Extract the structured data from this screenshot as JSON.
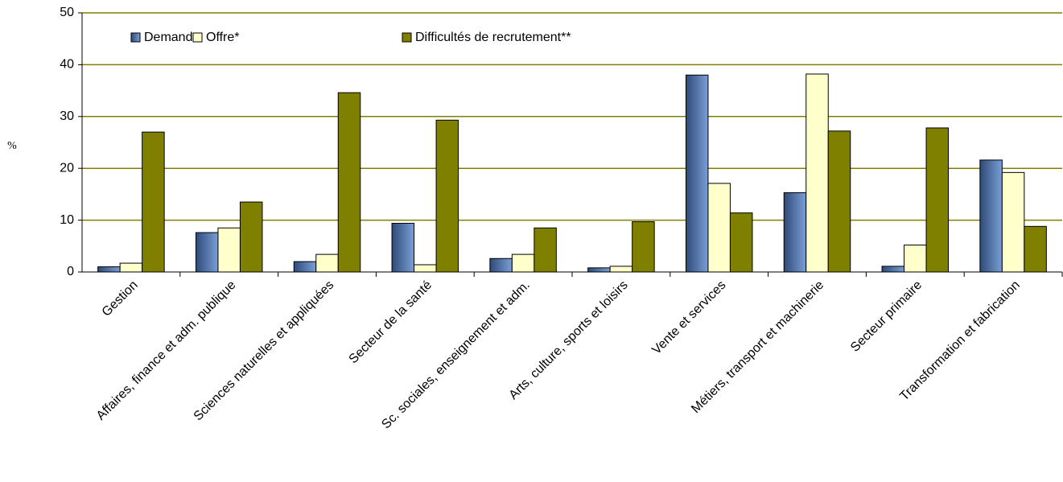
{
  "chart_data": {
    "type": "bar",
    "y_label": "%",
    "categories": [
      "Gestion",
      "Affaires, finance et adm. publique",
      "Sciences naturelles et appliquées",
      "Secteur de la santé",
      "Sc. sociales, enseignement et adm.",
      "Arts, culture, sports et loisirs",
      "Vente et services",
      "Métiers, transport et machinerie",
      "Secteur primaire",
      "Transformation et fabrication"
    ],
    "series": [
      {
        "name": "Demande",
        "color": "#7a9fd6",
        "values": [
          1.0,
          7.6,
          2.0,
          9.4,
          2.6,
          0.8,
          38.0,
          15.3,
          1.1,
          21.6
        ]
      },
      {
        "name": "Offre*",
        "color": "#ffffcc",
        "values": [
          1.7,
          8.5,
          3.4,
          1.4,
          3.4,
          1.1,
          17.1,
          38.2,
          5.2,
          19.2
        ]
      },
      {
        "name": "Difficultés de recrutement**",
        "color": "#808000",
        "values": [
          27.0,
          13.5,
          34.6,
          29.3,
          8.5,
          9.7,
          11.4,
          27.2,
          27.8,
          8.8
        ]
      }
    ],
    "ylim": [
      0,
      50
    ],
    "yticks": [
      0,
      10,
      20,
      30,
      40,
      50
    ],
    "grid": true,
    "grid_color": "#808000",
    "legend": "top-left"
  }
}
